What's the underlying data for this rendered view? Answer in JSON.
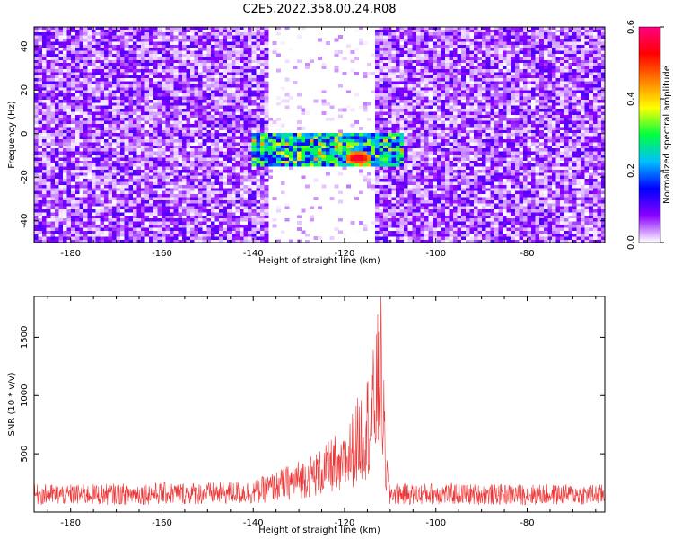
{
  "title": "C2E5.2022.358.00.24.R08",
  "chart_data": [
    {
      "type": "heatmap",
      "xlabel": "Height of straight line (km)",
      "ylabel": "Frequency (Hz)",
      "xlim": [
        -188,
        -63
      ],
      "ylim": [
        -50,
        49
      ],
      "xticks": [
        -180,
        -160,
        -140,
        -120,
        -100,
        -80
      ],
      "yticks": [
        -40,
        -20,
        0,
        20,
        40
      ],
      "colorbar": {
        "label": "Normalized spectral amplitude",
        "range": [
          0,
          0.6
        ],
        "ticks": [
          "0.0",
          "0.2",
          "0.4",
          "0.6"
        ],
        "colors": [
          "#ffffff",
          "#8a00ff",
          "#0000ff",
          "#00c0ff",
          "#00ff40",
          "#ffff00",
          "#ff8000",
          "#ff0000",
          "#ff0080"
        ]
      },
      "features": {
        "noise_level_typical": 0.08,
        "no_data_gap_x": [
          -137,
          -113
        ],
        "signal_band_y": [
          -15,
          0
        ],
        "signal_x": [
          -140,
          -107
        ],
        "peak": {
          "x": -117,
          "y": -11,
          "value": 0.6
        }
      }
    },
    {
      "type": "line",
      "xlabel": "Height of straight line (km)",
      "ylabel": "SNR (10 * v/v)",
      "xlim": [
        -188,
        -63
      ],
      "ylim": [
        0,
        1850
      ],
      "xticks": [
        -180,
        -160,
        -140,
        -120,
        -100,
        -80
      ],
      "yticks": [
        500,
        1000,
        1500
      ],
      "color": "#ee3333",
      "series": [
        {
          "x": [
            -188,
            -175,
            -160,
            -150,
            -140,
            -135,
            -130,
            -125,
            -122,
            -120,
            -118,
            -116,
            -114,
            -112,
            -111,
            -110,
            -105,
            -100,
            -90,
            -80,
            -70,
            -63
          ],
          "y": [
            150,
            150,
            160,
            160,
            170,
            220,
            280,
            340,
            420,
            650,
            850,
            1050,
            1250,
            1850,
            600,
            160,
            150,
            160,
            150,
            150,
            150,
            150
          ],
          "noise_amplitude": 90
        }
      ]
    }
  ]
}
